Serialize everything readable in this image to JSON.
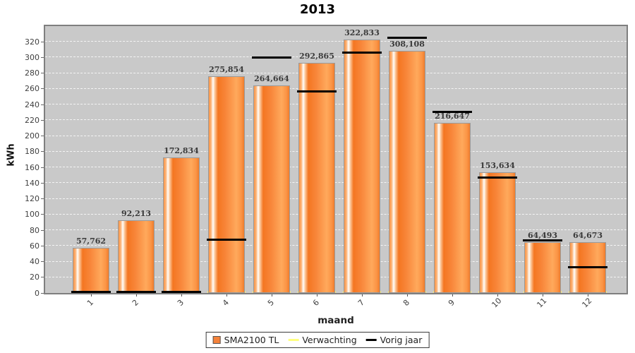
{
  "title": "2013",
  "y_axis": {
    "label": "kWh",
    "tick_labels": [
      "0",
      "20",
      "40",
      "60",
      "80",
      "100",
      "120",
      "140",
      "160",
      "180",
      "200",
      "220",
      "240",
      "260",
      "280",
      "300",
      "320"
    ]
  },
  "x_axis": {
    "label": "maand",
    "tick_labels": [
      "1",
      "2",
      "3",
      "4",
      "5",
      "6",
      "7",
      "8",
      "9",
      "10",
      "11",
      "12"
    ]
  },
  "legend": {
    "items": [
      {
        "label": "SMA2100 TL",
        "swatch": "bar",
        "color": "#f5823a"
      },
      {
        "label": "Verwachting",
        "swatch": "line",
        "color": "#ffff80"
      },
      {
        "label": "Vorig jaar",
        "swatch": "line",
        "color": "#000000"
      }
    ]
  },
  "colors": {
    "bar_main": "#f5823a",
    "plot_bg": "#c9c9c9",
    "gridline": "#ffffff",
    "expected_marker": "#fce878",
    "prev_year_marker": "#000000"
  },
  "chart_data": {
    "type": "bar",
    "title": "2013",
    "xlabel": "maand",
    "ylabel": "kWh",
    "categories": [
      "1",
      "2",
      "3",
      "4",
      "5",
      "6",
      "7",
      "8",
      "9",
      "10",
      "11",
      "12"
    ],
    "y_ticks": [
      0,
      20,
      40,
      60,
      80,
      100,
      120,
      140,
      160,
      180,
      200,
      220,
      240,
      260,
      280,
      300,
      320
    ],
    "ylim": [
      0,
      340
    ],
    "grid": "horizontal-dashed",
    "legend_position": "bottom",
    "series": [
      {
        "name": "SMA2100 TL",
        "type": "bar",
        "color": "#f5823a",
        "values": [
          57.762,
          92.213,
          172.834,
          275.854,
          264.664,
          292.865,
          322.833,
          308.108,
          216.647,
          153.634,
          64.493,
          64.673
        ],
        "labels": [
          "57,762",
          "92,213",
          "172,834",
          "275,854",
          "264,664",
          "292,865",
          "322,833",
          "308,108",
          "216,647",
          "153,634",
          "64,493",
          "64,673"
        ]
      },
      {
        "name": "Verwachting",
        "type": "tick-marker",
        "color": "#fce878",
        "values": [
          null,
          null,
          null,
          0,
          0,
          0,
          0,
          0,
          0,
          0,
          0,
          0
        ]
      },
      {
        "name": "Vorig jaar",
        "type": "tick-marker",
        "color": "#000000",
        "values": [
          1,
          1,
          1,
          68,
          300,
          257,
          306,
          325,
          231,
          147,
          67,
          33
        ]
      }
    ]
  }
}
